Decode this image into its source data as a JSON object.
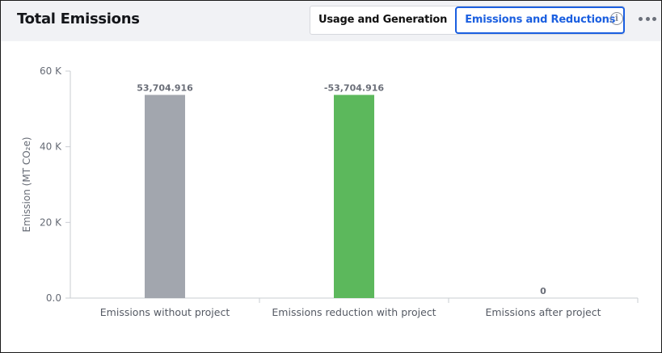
{
  "panel": {
    "title": "Total Emissions",
    "tabs": [
      {
        "label": "Usage and Generation",
        "active": false
      },
      {
        "label": "Emissions and Reductions",
        "active": true
      }
    ],
    "info_icon": "info-circle-icon",
    "more_icon": "more-horizontal-icon"
  },
  "colors": {
    "accent": "#1b5fe0",
    "bar_gray": "#a2a6ae",
    "bar_green": "#5cb85c"
  },
  "chart_data": {
    "type": "bar",
    "categories": [
      "Emissions without project",
      "Emissions reduction with project",
      "Emissions after project"
    ],
    "values": [
      53704.916,
      53704.916,
      0
    ],
    "data_labels": [
      "53,704.916",
      "-53,704.916",
      "0"
    ],
    "bar_colors": [
      "#a2a6ae",
      "#5cb85c",
      "#a2a6ae"
    ],
    "ylabel": "Emission (MT CO₂e)",
    "xlabel": "",
    "ylim": [
      0,
      60000
    ],
    "yticks": [
      0,
      20000,
      40000,
      60000
    ],
    "ytick_labels": [
      "0.0",
      "20 K",
      "40 K",
      "60 K"
    ],
    "grid": false,
    "legend": "none"
  }
}
